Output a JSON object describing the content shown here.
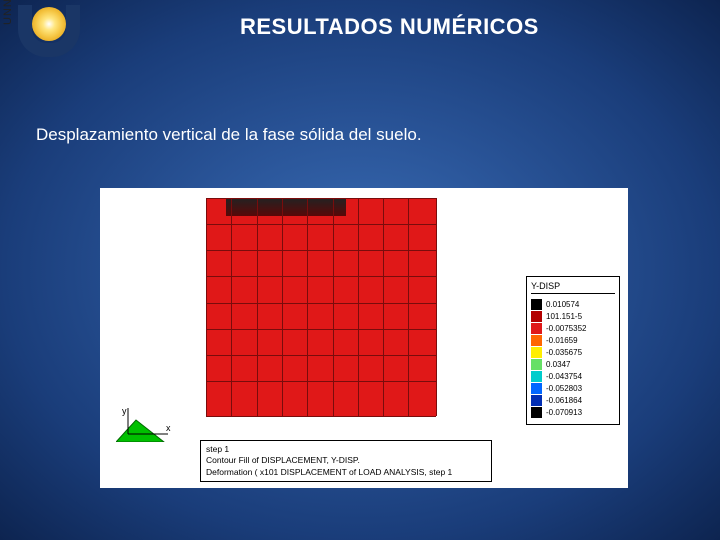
{
  "brand": {
    "vertical_text": "UNNE"
  },
  "title": "RESULTADOS NUMÉRICOS",
  "subtitle": "Desplazamiento vertical de la fase sólida del suelo.",
  "axis": {
    "x_label": "x",
    "y_label": "y"
  },
  "legend": {
    "title": "Y-DISP",
    "items": [
      {
        "color": "#000000",
        "value": "0.010574"
      },
      {
        "color": "#b30000",
        "value": "101.151-5"
      },
      {
        "color": "#e01818",
        "value": "-0.0075352"
      },
      {
        "color": "#ff6600",
        "value": "-0.01659"
      },
      {
        "color": "#ffee00",
        "value": "-0.035675"
      },
      {
        "color": "#66e066",
        "value": "0.0347"
      },
      {
        "color": "#00cccc",
        "value": "-0.043754"
      },
      {
        "color": "#0066ff",
        "value": "-0.052803"
      },
      {
        "color": "#002db3",
        "value": "-0.061864"
      },
      {
        "color": "#000000",
        "value": "-0.070913"
      }
    ]
  },
  "caption": {
    "line1": "step 1",
    "line2": "Contour Fill of DISPLACEMENT, Y-DISP.",
    "line3": "Deformation ( x101 DISPLACEMENT of LOAD ANALYSIS, step 1"
  },
  "grid": {
    "v_positions_pct": [
      0,
      11,
      22,
      33,
      44,
      55,
      66,
      77,
      88,
      100
    ],
    "h_positions_pct": [
      0,
      12,
      24,
      36,
      48,
      60,
      72,
      84,
      100
    ]
  }
}
